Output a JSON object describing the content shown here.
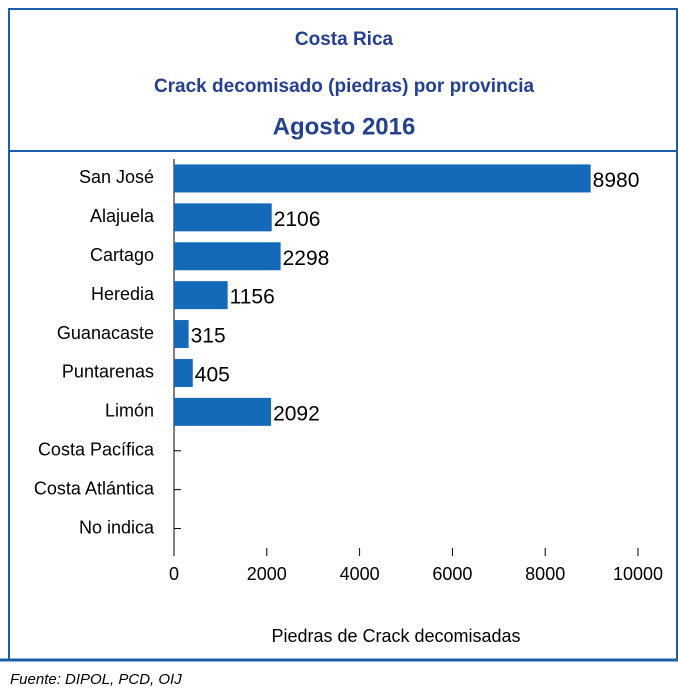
{
  "chart_data": {
    "type": "bar",
    "orientation": "horizontal",
    "title": "Costa Rica",
    "subtitle": "Crack decomisado (piedras) por provincia",
    "period": "Agosto 2016",
    "categories": [
      "San José",
      "Alajuela",
      "Cartago",
      "Heredia",
      "Guanacaste",
      "Puntarenas",
      "Limón",
      "Costa Pacífica",
      "Costa Atlántica",
      "No indica"
    ],
    "values": [
      8980,
      2106,
      2298,
      1156,
      315,
      405,
      2092,
      null,
      null,
      null
    ],
    "color": "#1469b8",
    "xlim": [
      0,
      10000
    ],
    "xticks": [
      0,
      2000,
      4000,
      6000,
      8000,
      10000
    ],
    "x_label": "Piedras de Crack decomisadas",
    "source": "Fuente: DIPOL, PCD, OIJ",
    "grid": false
  }
}
